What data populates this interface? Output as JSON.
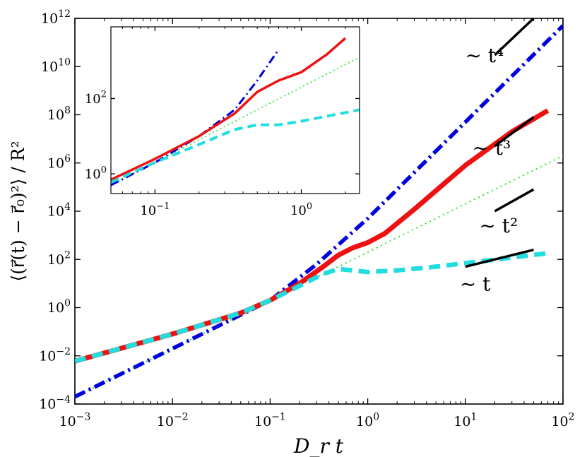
{
  "chart_data": [
    {
      "id": "main",
      "type": "line",
      "xscale": "log",
      "yscale": "log",
      "xlim": [
        0.001,
        100
      ],
      "ylim": [
        0.0001,
        1000000000000
      ],
      "xlabel": "D_r t",
      "ylabel": "⟨(r⃗(t) − r⃗₀)²⟩ / R²",
      "x_ticks": [
        {
          "base": "10",
          "exp": "−3"
        },
        {
          "base": "10",
          "exp": "−2"
        },
        {
          "base": "10",
          "exp": "−1"
        },
        {
          "base": "10",
          "exp": "0"
        },
        {
          "base": "10",
          "exp": "1"
        },
        {
          "base": "10",
          "exp": "2"
        }
      ],
      "y_ticks": [
        {
          "base": "10",
          "exp": "−4"
        },
        {
          "base": "10",
          "exp": "−2"
        },
        {
          "base": "10",
          "exp": "0"
        },
        {
          "base": "10",
          "exp": "2"
        },
        {
          "base": "10",
          "exp": "4"
        },
        {
          "base": "10",
          "exp": "6"
        },
        {
          "base": "10",
          "exp": "8"
        },
        {
          "base": "10",
          "exp": "10"
        },
        {
          "base": "10",
          "exp": "12"
        }
      ],
      "series": [
        {
          "name": "blue dash-dot",
          "color": "#0000dd",
          "style": "dashdot",
          "x": [
            0.001,
            0.01,
            0.1,
            0.3,
            1,
            10,
            100
          ],
          "y": [
            0.0002,
            0.02,
            2,
            63,
            5000,
            50000000,
            500000000000
          ]
        },
        {
          "name": "green dotted",
          "color": "#33dd33",
          "style": "dotted",
          "x": [
            0.001,
            0.01,
            0.1,
            1,
            10,
            100
          ],
          "y": [
            0.0002,
            0.02,
            2,
            200,
            20000,
            2000000
          ]
        },
        {
          "name": "red solid",
          "color": "#ee1111",
          "style": "solid",
          "x": [
            0.001,
            0.01,
            0.05,
            0.1,
            0.2,
            0.35,
            0.5,
            0.7,
            1.0,
            1.5,
            3,
            10,
            30,
            70
          ],
          "y": [
            0.006,
            0.08,
            0.6,
            2,
            10,
            50,
            150,
            300,
            500,
            1200,
            12000,
            800000,
            20000000,
            150000000
          ]
        },
        {
          "name": "cyan dashed",
          "color": "#22dddd",
          "style": "dashed",
          "x": [
            0.001,
            0.01,
            0.05,
            0.1,
            0.2,
            0.35,
            0.5,
            0.7,
            1,
            2,
            5,
            10,
            30,
            70
          ],
          "y": [
            0.006,
            0.08,
            0.6,
            2,
            8,
            25,
            40,
            35,
            30,
            35,
            50,
            70,
            120,
            180
          ]
        }
      ],
      "reference_lines": [
        {
          "label": "∼ t⁴",
          "slope": 4,
          "x": [
            20,
            50
          ],
          "y": [
            30000000000,
            1000000000000
          ]
        },
        {
          "label": "∼ t³",
          "slope": 3,
          "x": [
            20,
            50
          ],
          "y": [
            5000000,
            80000000
          ]
        },
        {
          "label": "∼ t²",
          "slope": 2,
          "x": [
            20,
            50
          ],
          "y": [
            10000,
            80000
          ]
        },
        {
          "label": "∼ t",
          "slope": 1,
          "x": [
            10,
            50
          ],
          "y": [
            50,
            250
          ]
        }
      ]
    },
    {
      "id": "inset",
      "type": "line",
      "xscale": "log",
      "yscale": "log",
      "xlim": [
        0.05,
        2.5
      ],
      "ylim": [
        0.3,
        8000
      ],
      "x_ticks": [
        {
          "base": "10",
          "exp": "−1"
        },
        {
          "base": "10",
          "exp": "0"
        }
      ],
      "y_ticks": [
        {
          "base": "10",
          "exp": "0"
        },
        {
          "base": "10",
          "exp": "2"
        }
      ],
      "series": [
        {
          "name": "blue dash-dot",
          "color": "#0000dd",
          "style": "dashdot",
          "x": [
            0.05,
            0.1,
            0.2,
            0.35,
            0.5,
            0.7
          ],
          "y": [
            0.5,
            2,
            10,
            50,
            300,
            2000
          ]
        },
        {
          "name": "green dotted",
          "color": "#33dd33",
          "style": "dotted",
          "x": [
            0.05,
            0.1,
            0.5,
            1,
            2.5
          ],
          "y": [
            0.5,
            2,
            50,
            200,
            1250
          ]
        },
        {
          "name": "red solid",
          "color": "#ee1111",
          "style": "solid",
          "x": [
            0.05,
            0.1,
            0.2,
            0.35,
            0.5,
            0.7,
            1.0,
            1.5,
            2.0
          ],
          "y": [
            0.7,
            2.5,
            10,
            40,
            150,
            300,
            500,
            1500,
            4000
          ]
        },
        {
          "name": "cyan dashed",
          "color": "#22dddd",
          "style": "dashed",
          "x": [
            0.05,
            0.1,
            0.2,
            0.35,
            0.5,
            0.7,
            1.0,
            2.5
          ],
          "y": [
            0.6,
            2,
            6,
            15,
            20,
            20,
            25,
            50
          ]
        }
      ]
    }
  ]
}
